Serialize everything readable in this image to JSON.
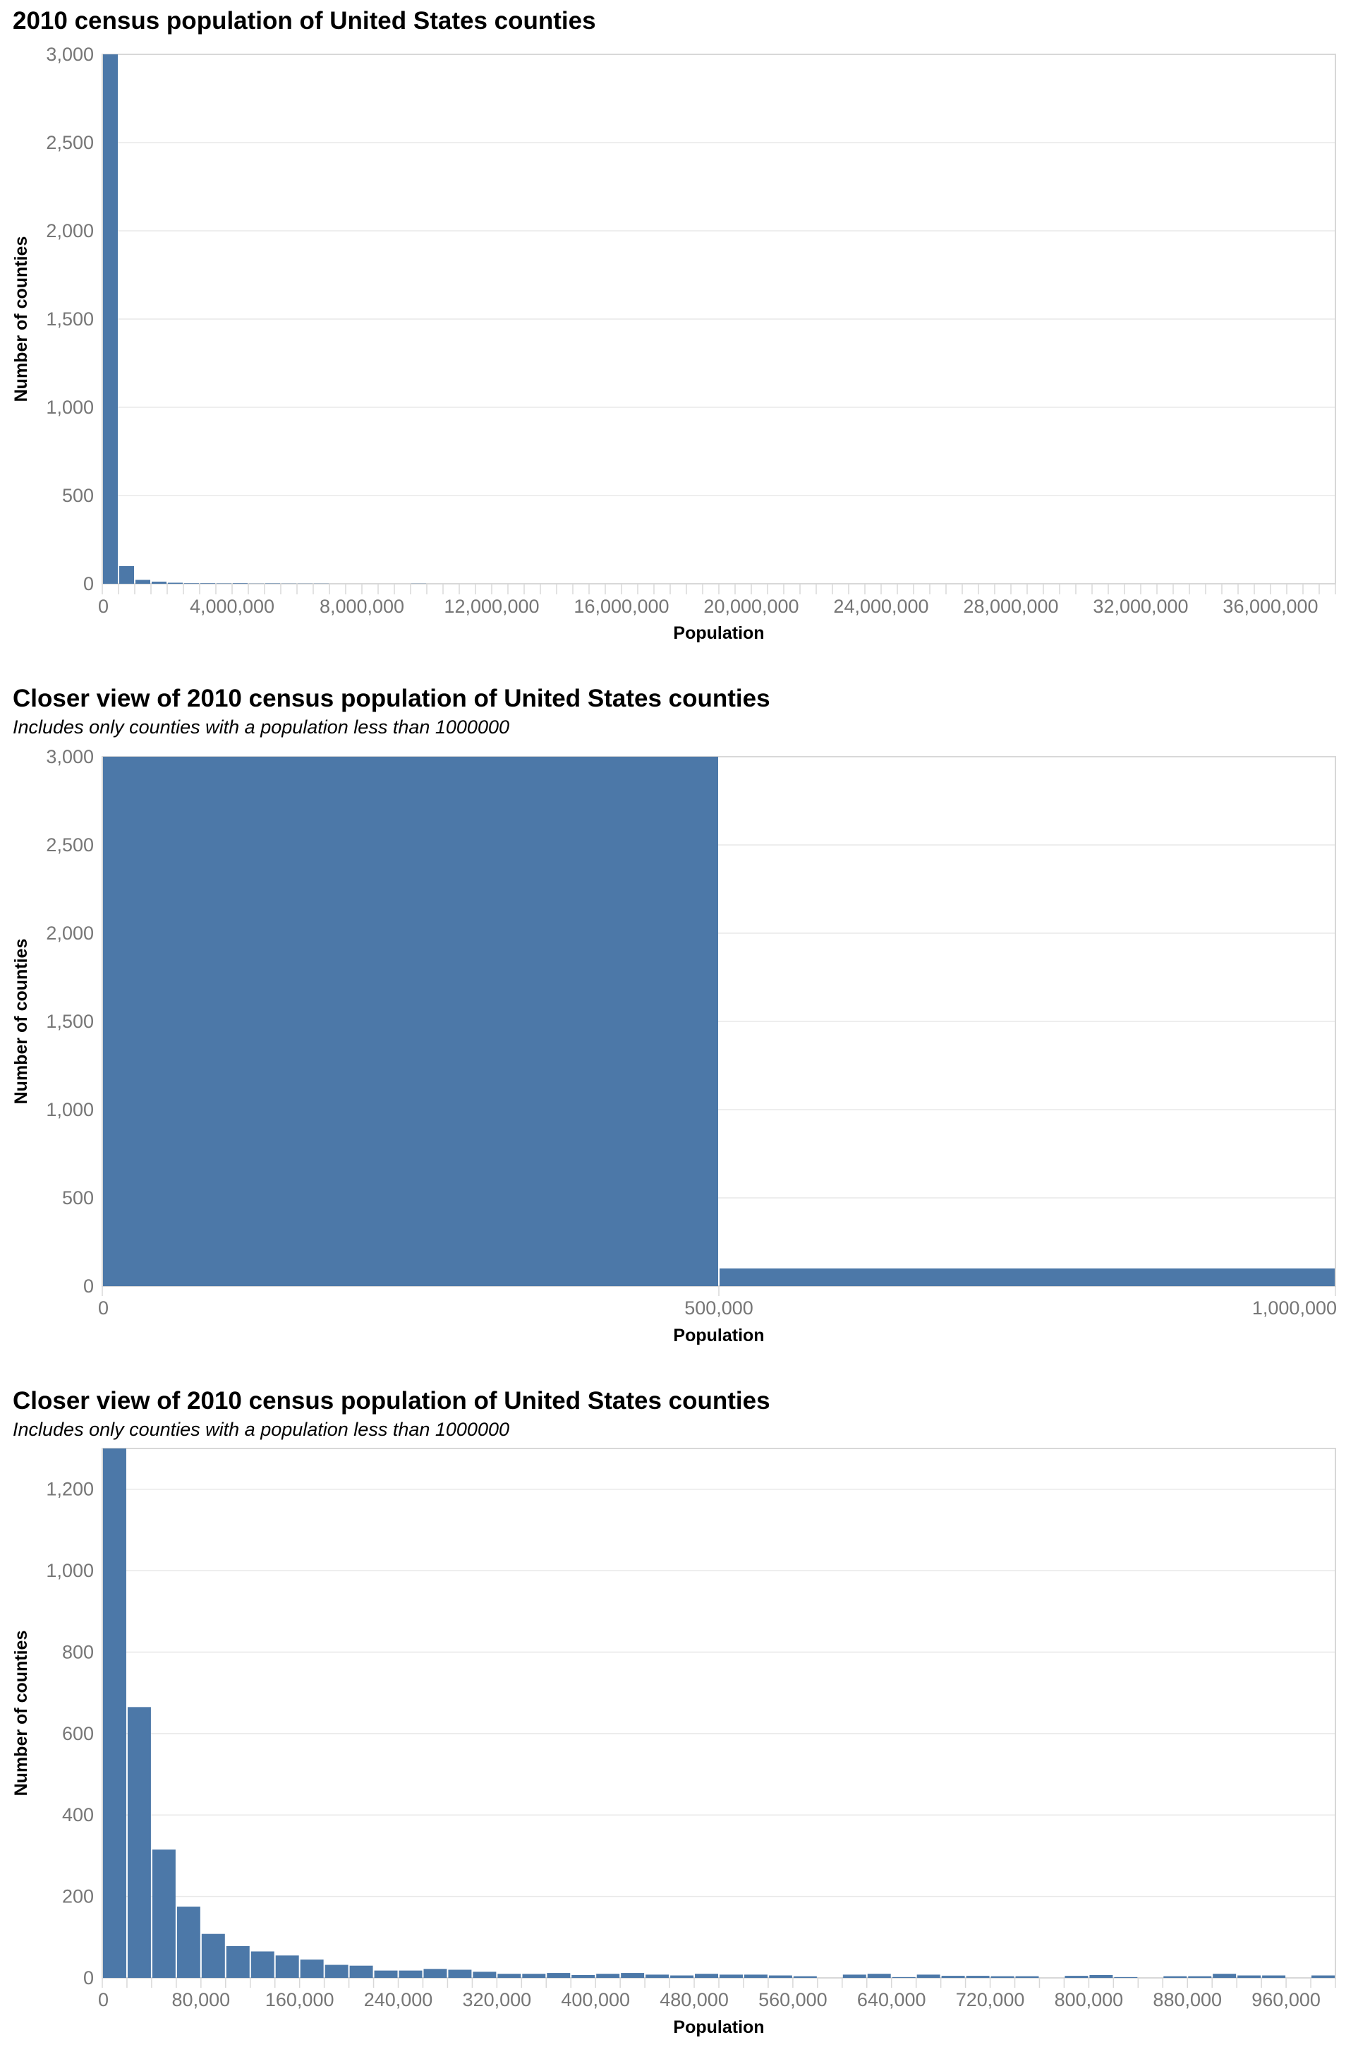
{
  "chart_data": [
    {
      "type": "bar",
      "title": "2010 census population of United States counties",
      "subtitle": "",
      "xlabel": "Population",
      "ylabel": "Number of counties",
      "xlim": [
        0,
        38000000
      ],
      "ylim": [
        0,
        3000
      ],
      "grid": true,
      "bin_width": 500000,
      "bins": [
        0,
        500000,
        1000000,
        1500000,
        2000000,
        2500000,
        3000000,
        3500000,
        4000000,
        4500000,
        5000000,
        5500000,
        6000000,
        6500000,
        7000000,
        7500000,
        8000000,
        8500000,
        9000000,
        9500000,
        10000000
      ],
      "values": [
        3000,
        100,
        22,
        12,
        6,
        3,
        3,
        2,
        3,
        1,
        2,
        1,
        1,
        1,
        0,
        0,
        0,
        0,
        0,
        1,
        0
      ],
      "x_ticks": [
        "0",
        "4,000,000",
        "8,000,000",
        "12,000,000",
        "16,000,000",
        "20,000,000",
        "24,000,000",
        "28,000,000",
        "32,000,000",
        "36,000,000"
      ],
      "x_tick_values": [
        0,
        4000000,
        8000000,
        12000000,
        16000000,
        20000000,
        24000000,
        28000000,
        32000000,
        36000000
      ],
      "y_ticks": [
        "0",
        "500",
        "1,000",
        "1,500",
        "2,000",
        "2,500",
        "3,000"
      ],
      "y_tick_values": [
        0,
        500,
        1000,
        1500,
        2000,
        2500,
        3000
      ]
    },
    {
      "type": "bar",
      "title": "Closer view of 2010 census population of United States counties",
      "subtitle": "Includes only counties with a population less than 1000000",
      "xlabel": "Population",
      "ylabel": "Number of counties",
      "xlim": [
        0,
        1000000
      ],
      "ylim": [
        0,
        3000
      ],
      "grid": true,
      "bin_width": 500000,
      "bins": [
        0,
        500000
      ],
      "values": [
        3000,
        100
      ],
      "x_ticks": [
        "0",
        "500,000",
        "1,000,000"
      ],
      "x_tick_values": [
        0,
        500000,
        1000000
      ],
      "y_ticks": [
        "0",
        "500",
        "1,000",
        "1,500",
        "2,000",
        "2,500",
        "3,000"
      ],
      "y_tick_values": [
        0,
        500,
        1000,
        1500,
        2000,
        2500,
        3000
      ]
    },
    {
      "type": "bar",
      "title": "Closer view of 2010 census population of United States counties",
      "subtitle": "Includes only counties with a population less than 1000000",
      "xlabel": "Population",
      "ylabel": "Number of counties",
      "xlim": [
        0,
        1000000
      ],
      "ylim": [
        0,
        1300
      ],
      "grid": true,
      "bin_width": 20000,
      "bins": [
        0,
        20000,
        40000,
        60000,
        80000,
        100000,
        120000,
        140000,
        160000,
        180000,
        200000,
        220000,
        240000,
        260000,
        280000,
        300000,
        320000,
        340000,
        360000,
        380000,
        400000,
        420000,
        440000,
        460000,
        480000,
        500000,
        520000,
        540000,
        560000,
        580000,
        600000,
        620000,
        640000,
        660000,
        680000,
        700000,
        720000,
        740000,
        760000,
        780000,
        800000,
        820000,
        840000,
        860000,
        880000,
        900000,
        920000,
        940000,
        960000,
        980000
      ],
      "values": [
        1300,
        665,
        315,
        175,
        108,
        78,
        65,
        55,
        45,
        32,
        30,
        18,
        18,
        22,
        20,
        15,
        10,
        10,
        12,
        7,
        10,
        12,
        8,
        6,
        10,
        8,
        8,
        6,
        4,
        0,
        8,
        10,
        2,
        8,
        5,
        5,
        4,
        4,
        0,
        5,
        7,
        2,
        0,
        4,
        4,
        10,
        6,
        6,
        0,
        6
      ],
      "x_ticks": [
        "0",
        "80,000",
        "160,000",
        "240,000",
        "320,000",
        "400,000",
        "480,000",
        "560,000",
        "640,000",
        "720,000",
        "800,000",
        "880,000",
        "960,000"
      ],
      "x_tick_values": [
        0,
        80000,
        160000,
        240000,
        320000,
        400000,
        480000,
        560000,
        640000,
        720000,
        800000,
        880000,
        960000
      ],
      "y_ticks": [
        "0",
        "200",
        "400",
        "600",
        "800",
        "1,000",
        "1,200"
      ],
      "y_tick_values": [
        0,
        200,
        400,
        600,
        800,
        1000,
        1200
      ]
    }
  ],
  "style": {
    "bar_color": "#4c78a8",
    "grid_color": "#e8e8e8",
    "domain_color": "#d8d8d8",
    "tick_label_color": "#767676"
  }
}
